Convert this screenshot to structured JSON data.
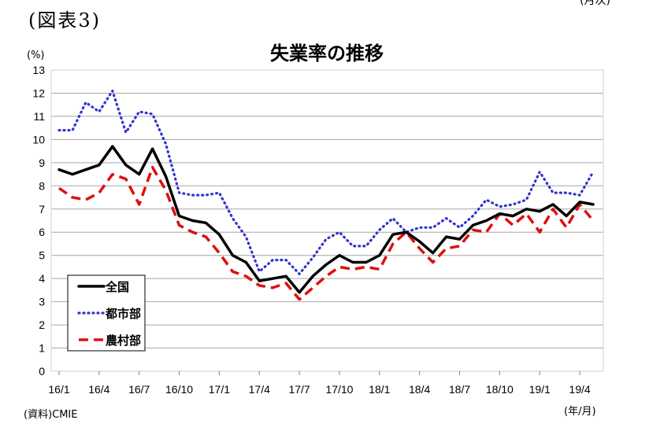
{
  "figure_label": "(図表3)",
  "corner_label": "(月次)",
  "source_note": "(資料)CMIE",
  "chart_data": {
    "type": "line",
    "title": "失業率の推移",
    "ylabel": "(%)",
    "xlabel": "(年/月)",
    "ylim": [
      0,
      13
    ],
    "yticks": [
      0,
      1,
      2,
      3,
      4,
      5,
      6,
      7,
      8,
      9,
      10,
      11,
      12,
      13
    ],
    "grid": true,
    "legend_position": "bottom-left",
    "xtick_labels": [
      "16/1",
      "16/4",
      "16/7",
      "16/10",
      "17/1",
      "17/4",
      "17/7",
      "17/10",
      "18/1",
      "18/4",
      "18/7",
      "18/10",
      "19/1",
      "19/4"
    ],
    "x": [
      "16/1",
      "16/2",
      "16/3",
      "16/4",
      "16/5",
      "16/6",
      "16/7",
      "16/8",
      "16/9",
      "16/10",
      "16/11",
      "16/12",
      "17/1",
      "17/2",
      "17/3",
      "17/4",
      "17/5",
      "17/6",
      "17/7",
      "17/8",
      "17/9",
      "17/10",
      "17/11",
      "17/12",
      "18/1",
      "18/2",
      "18/3",
      "18/4",
      "18/5",
      "18/6",
      "18/7",
      "18/8",
      "18/9",
      "18/10",
      "18/11",
      "18/12",
      "19/1",
      "19/2",
      "19/3",
      "19/4",
      "19/5"
    ],
    "series": [
      {
        "name": "全国",
        "color": "#000000",
        "style": "solid",
        "values": [
          8.7,
          8.5,
          8.7,
          8.9,
          9.7,
          8.9,
          8.5,
          9.6,
          8.4,
          6.7,
          6.5,
          6.4,
          5.9,
          5.0,
          4.7,
          3.9,
          4.0,
          4.1,
          3.4,
          4.1,
          4.6,
          5.0,
          4.7,
          4.7,
          5.0,
          5.9,
          6.0,
          5.6,
          5.1,
          5.8,
          5.7,
          6.3,
          6.5,
          6.8,
          6.7,
          7.0,
          6.9,
          7.2,
          6.7,
          7.3,
          7.2
        ]
      },
      {
        "name": "都市部",
        "color": "#3333cc",
        "style": "dotted",
        "values": [
          10.4,
          10.4,
          11.6,
          11.2,
          12.1,
          10.3,
          11.2,
          11.1,
          9.8,
          7.7,
          7.6,
          7.6,
          7.7,
          6.6,
          5.8,
          4.3,
          4.8,
          4.8,
          4.2,
          4.9,
          5.7,
          6.0,
          5.4,
          5.4,
          6.1,
          6.6,
          6.0,
          6.2,
          6.2,
          6.6,
          6.2,
          6.7,
          7.4,
          7.1,
          7.2,
          7.4,
          8.6,
          7.7,
          7.7,
          7.6,
          8.6
        ]
      },
      {
        "name": "農村部",
        "color": "#dd1111",
        "style": "dashed",
        "values": [
          7.9,
          7.5,
          7.4,
          7.7,
          8.5,
          8.3,
          7.2,
          8.8,
          7.8,
          6.3,
          6.0,
          5.8,
          5.1,
          4.3,
          4.1,
          3.7,
          3.6,
          3.8,
          3.1,
          3.6,
          4.1,
          4.5,
          4.4,
          4.5,
          4.4,
          5.5,
          6.0,
          5.3,
          4.7,
          5.3,
          5.4,
          6.1,
          6.0,
          6.8,
          6.3,
          6.8,
          6.0,
          7.0,
          6.2,
          7.2,
          6.5
        ]
      }
    ]
  }
}
